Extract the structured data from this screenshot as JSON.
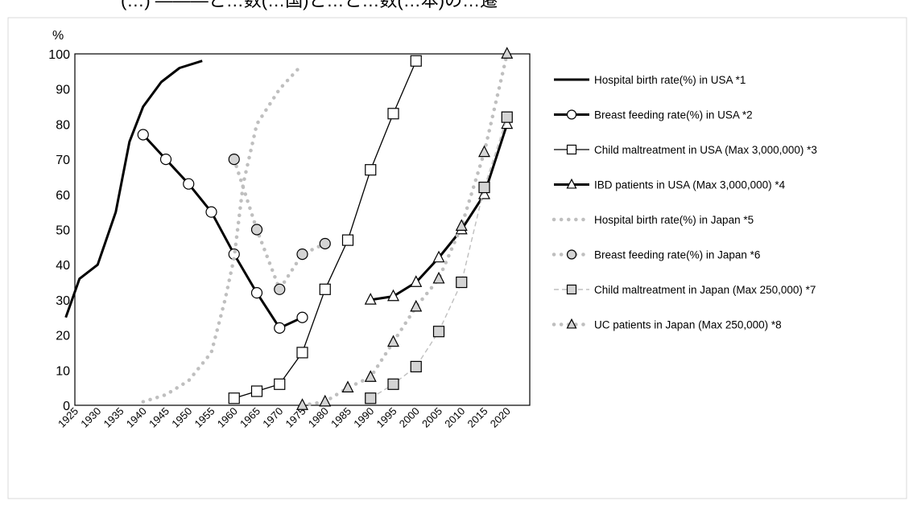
{
  "chart_data": {
    "type": "line",
    "title": "(…) ―――と…数(…国)と…と…数(…本)の…遷",
    "ylabel": "%",
    "ylim": [
      0,
      100
    ],
    "yticks": [
      "0",
      "10",
      "20",
      "30",
      "40",
      "50",
      "60",
      "70",
      "80",
      "90",
      "100"
    ],
    "x_categories": [
      "1925",
      "1930",
      "1935",
      "1940",
      "1945",
      "1950",
      "1955",
      "1960",
      "1965",
      "1970",
      "1975",
      "1980",
      "1985",
      "1990",
      "1995",
      "2000",
      "2005",
      "2010",
      "2015",
      "2020"
    ],
    "grid": false,
    "legend_position": "right",
    "series": [
      {
        "name": "Hospital birth rate(%) in USA *1",
        "style": "solid-thick",
        "marker": "none",
        "color": "#000000",
        "points": [
          [
            1923,
            25
          ],
          [
            1926,
            36
          ],
          [
            1930,
            40
          ],
          [
            1934,
            55
          ],
          [
            1937,
            75
          ],
          [
            1940,
            85
          ],
          [
            1944,
            92
          ],
          [
            1948,
            96
          ],
          [
            1953,
            98
          ]
        ]
      },
      {
        "name": "Breast feeding rate(%) in USA *2",
        "style": "solid-thick",
        "marker": "circle",
        "color": "#000000",
        "points": [
          [
            1940,
            77
          ],
          [
            1945,
            70
          ],
          [
            1950,
            63
          ],
          [
            1955,
            55
          ],
          [
            1960,
            43
          ],
          [
            1965,
            32
          ],
          [
            1970,
            22
          ],
          [
            1975,
            25
          ]
        ]
      },
      {
        "name": "Child maltreatment in USA (Max 3,000,000) *3",
        "style": "solid-thin",
        "marker": "square",
        "color": "#000000",
        "points": [
          [
            1960,
            2
          ],
          [
            1965,
            4
          ],
          [
            1970,
            6
          ],
          [
            1975,
            15
          ],
          [
            1980,
            33
          ],
          [
            1985,
            47
          ],
          [
            1990,
            67
          ],
          [
            1995,
            83
          ],
          [
            2000,
            98
          ]
        ]
      },
      {
        "name": "IBD patients in USA (Max 3,000,000) *4",
        "style": "solid-thick",
        "marker": "triangle",
        "color": "#000000",
        "points": [
          [
            1990,
            30
          ],
          [
            1995,
            31
          ],
          [
            2000,
            35
          ],
          [
            2005,
            42
          ],
          [
            2010,
            50
          ],
          [
            2015,
            60
          ],
          [
            2020,
            80
          ]
        ]
      },
      {
        "name": "Hospital birth rate(%) in Japan *5",
        "style": "dotted",
        "marker": "none",
        "color": "#bfbfbf",
        "points": [
          [
            1940,
            1
          ],
          [
            1945,
            3
          ],
          [
            1950,
            7
          ],
          [
            1955,
            15
          ],
          [
            1958,
            30
          ],
          [
            1960,
            42
          ],
          [
            1962,
            63
          ],
          [
            1965,
            80
          ],
          [
            1970,
            90
          ],
          [
            1975,
            97
          ]
        ]
      },
      {
        "name": "Breast feeding rate(%) in Japan *6",
        "style": "dotted",
        "marker": "circle",
        "color": "#bfbfbf",
        "points": [
          [
            1960,
            70
          ],
          [
            1965,
            50
          ],
          [
            1970,
            33
          ],
          [
            1975,
            43
          ],
          [
            1980,
            46
          ]
        ]
      },
      {
        "name": "Child maltreatment in Japan (Max 250,000) *7",
        "style": "dashed",
        "marker": "square",
        "color": "#bfbfbf",
        "points": [
          [
            1990,
            2
          ],
          [
            1995,
            6
          ],
          [
            2000,
            11
          ],
          [
            2005,
            21
          ],
          [
            2010,
            35
          ],
          [
            2015,
            62
          ],
          [
            2020,
            82
          ]
        ]
      },
      {
        "name": "UC patients  in Japan (Max 250,000) *8",
        "style": "dotted",
        "marker": "triangle",
        "color": "#bfbfbf",
        "points": [
          [
            1975,
            0
          ],
          [
            1980,
            1
          ],
          [
            1985,
            5
          ],
          [
            1990,
            8
          ],
          [
            1995,
            18
          ],
          [
            2000,
            28
          ],
          [
            2005,
            36
          ],
          [
            2010,
            51
          ],
          [
            2015,
            72
          ],
          [
            2020,
            100
          ]
        ]
      }
    ]
  }
}
